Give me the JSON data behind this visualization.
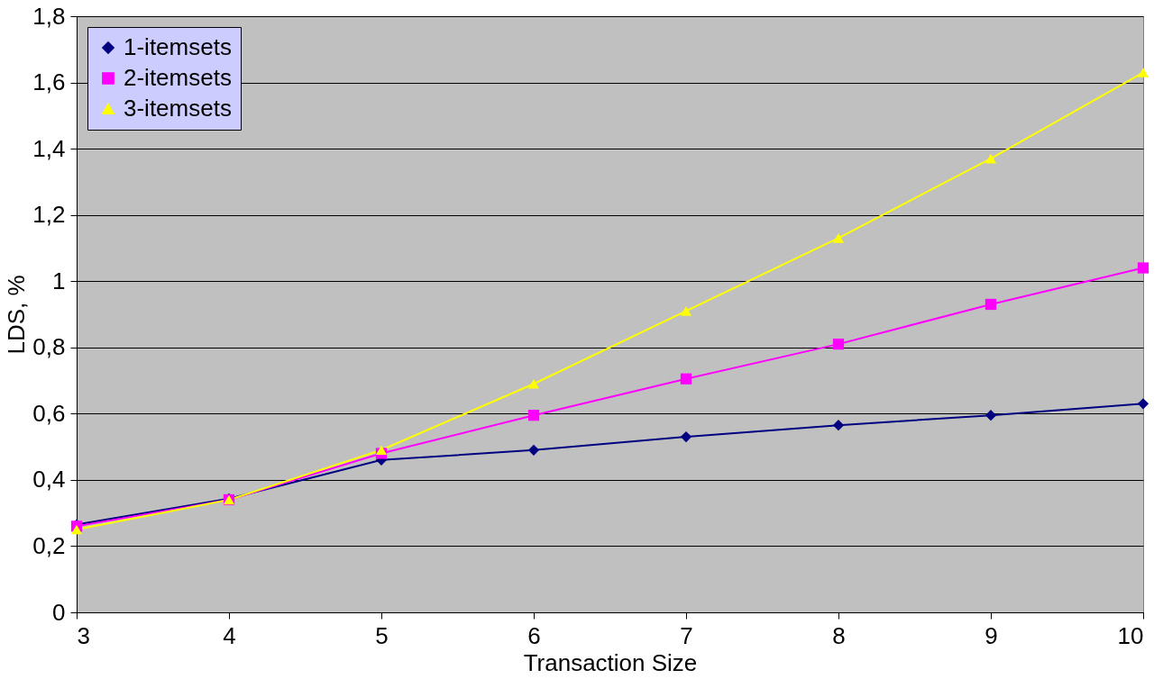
{
  "chart_data": {
    "type": "line",
    "xlabel": "Transaction Size",
    "ylabel": "LDS, %",
    "x": [
      3,
      4,
      5,
      6,
      7,
      8,
      9,
      10
    ],
    "series": [
      {
        "name": "1-itemsets",
        "color": "#000080",
        "marker": "diamond",
        "values": [
          0.265,
          0.343,
          0.46,
          0.49,
          0.53,
          0.565,
          0.595,
          0.63
        ]
      },
      {
        "name": "2-itemsets",
        "color": "#ff00ff",
        "marker": "square",
        "values": [
          0.26,
          0.34,
          0.48,
          0.595,
          0.705,
          0.81,
          0.93,
          1.04
        ]
      },
      {
        "name": "3-itemsets",
        "color": "#ffff00",
        "marker": "triangle",
        "values": [
          0.25,
          0.34,
          0.49,
          0.69,
          0.91,
          1.13,
          1.37,
          1.63
        ]
      }
    ],
    "xlim": [
      3,
      10
    ],
    "xticks": [
      3,
      4,
      5,
      6,
      7,
      8,
      9,
      10
    ],
    "ylim": [
      0,
      1.8
    ],
    "yticks": [
      0,
      {
        "value": 0.2,
        "label": "0,2"
      },
      {
        "value": 0.4,
        "label": "0,4"
      },
      {
        "value": 0.6,
        "label": "0,6"
      },
      {
        "value": 0.8,
        "label": "0,8"
      },
      1,
      {
        "value": 1.2,
        "label": "1,2"
      },
      {
        "value": 1.4,
        "label": "1,4"
      },
      {
        "value": 1.6,
        "label": "1,6"
      },
      {
        "value": 1.8,
        "label": "1,8"
      }
    ],
    "grid": "y",
    "legend": "top left",
    "line_style": "solid"
  }
}
